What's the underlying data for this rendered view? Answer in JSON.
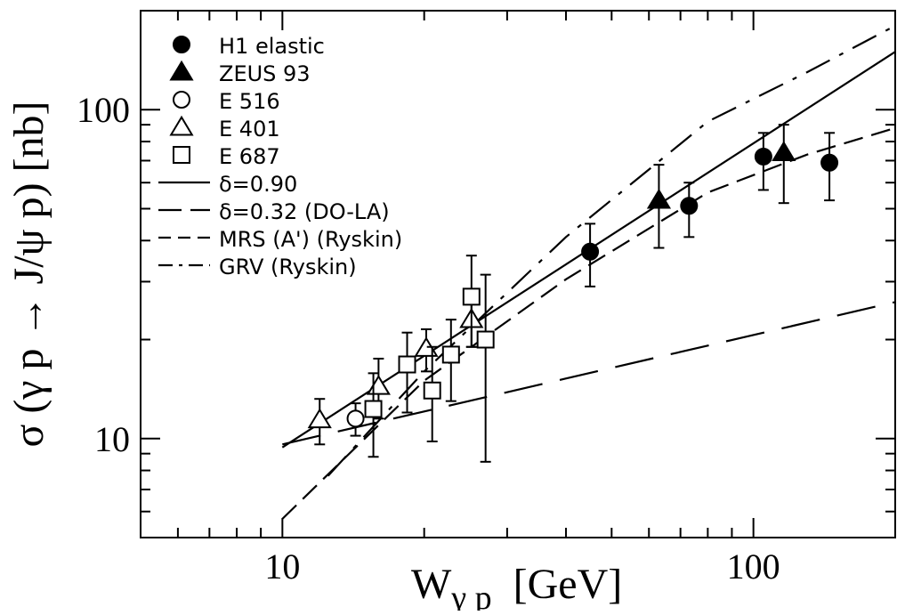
{
  "chart_data": {
    "type": "scatter",
    "xlabel": "W",
    "xlabel_sub": "γ p",
    "xlabel_unit": "[GeV]",
    "ylabel": "σ (γ p → J/ψ p)  [nb]",
    "x_scale": "log",
    "y_scale": "log",
    "xlim": [
      5,
      200
    ],
    "ylim": [
      5,
      200
    ],
    "x_tick_labels": [
      {
        "value": 10,
        "label": "10"
      },
      {
        "value": 100,
        "label": "100"
      }
    ],
    "y_tick_labels": [
      {
        "value": 10,
        "label": "10"
      },
      {
        "value": 100,
        "label": "100"
      }
    ],
    "grid": false,
    "legend_position": "top-left",
    "series": [
      {
        "name": "H1 elastic",
        "marker": "filled-circle",
        "points": [
          {
            "x": 45,
            "y": 37,
            "ylo": 29,
            "yhi": 45
          },
          {
            "x": 73,
            "y": 51,
            "ylo": 41,
            "yhi": 60
          },
          {
            "x": 105,
            "y": 72,
            "ylo": 57,
            "yhi": 85
          },
          {
            "x": 145,
            "y": 69,
            "ylo": 53,
            "yhi": 85
          }
        ]
      },
      {
        "name": "ZEUS 93",
        "marker": "filled-triangle",
        "points": [
          {
            "x": 63,
            "y": 53,
            "ylo": 38,
            "yhi": 68
          },
          {
            "x": 116,
            "y": 74,
            "ylo": 52,
            "yhi": 90
          }
        ]
      },
      {
        "name": "E 516",
        "marker": "open-circle",
        "points": [
          {
            "x": 14.3,
            "y": 11.5,
            "ylo": 10.2,
            "yhi": 12.8
          }
        ]
      },
      {
        "name": "E 401",
        "marker": "open-triangle",
        "points": [
          {
            "x": 12.0,
            "y": 11.4,
            "ylo": 9.6,
            "yhi": 13.2
          },
          {
            "x": 16.0,
            "y": 14.4,
            "ylo": 11.5,
            "yhi": 17.5
          },
          {
            "x": 20.2,
            "y": 18.8,
            "ylo": 16.0,
            "yhi": 21.5
          },
          {
            "x": 25.2,
            "y": 23.0,
            "ylo": 19.0,
            "yhi": 27.5
          }
        ]
      },
      {
        "name": "E 687",
        "marker": "open-square",
        "points": [
          {
            "x": 15.6,
            "y": 12.3,
            "ylo": 8.8,
            "yhi": 15.8
          },
          {
            "x": 18.4,
            "y": 16.8,
            "ylo": 12.0,
            "yhi": 21.0
          },
          {
            "x": 20.8,
            "y": 14.0,
            "ylo": 9.8,
            "yhi": 19.0
          },
          {
            "x": 22.8,
            "y": 18.0,
            "ylo": 13.0,
            "yhi": 23.0
          },
          {
            "x": 25.2,
            "y": 27.0,
            "ylo": 19.0,
            "yhi": 36.0
          },
          {
            "x": 27.0,
            "y": 20.0,
            "ylo": 8.5,
            "yhi": 31.5
          }
        ]
      }
    ],
    "curves": [
      {
        "name": "δ=0.90",
        "style": "solid",
        "points": [
          [
            10,
            9.4
          ],
          [
            200,
            150
          ]
        ]
      },
      {
        "name": "δ=0.32 (DO-LA)",
        "style": "long-dash",
        "points": [
          [
            10,
            9.6
          ],
          [
            200,
            26
          ]
        ]
      },
      {
        "name": "MRS (A') (Ryskin)",
        "style": "dash",
        "points": [
          [
            10,
            5.7
          ],
          [
            20,
            15.0
          ],
          [
            40,
            30.5
          ],
          [
            80,
            56
          ],
          [
            130,
            73
          ],
          [
            200,
            88
          ]
        ]
      },
      {
        "name": "GRV (Ryskin)",
        "style": "dash-dot",
        "points": [
          [
            12.5,
            7.7
          ],
          [
            20,
            16.0
          ],
          [
            40,
            41
          ],
          [
            80,
            92
          ],
          [
            130,
            130
          ],
          [
            200,
            180
          ]
        ]
      }
    ]
  }
}
